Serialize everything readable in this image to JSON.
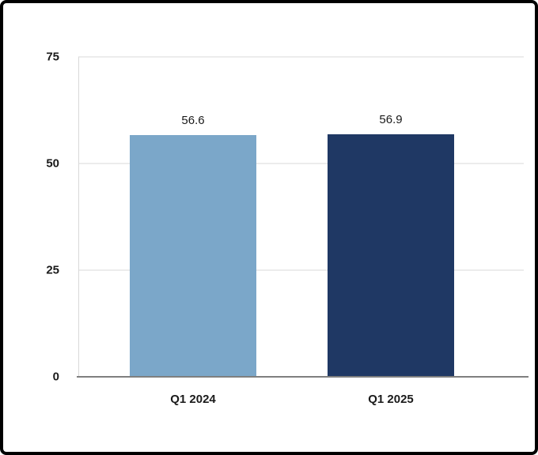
{
  "chart_data": {
    "type": "bar",
    "title": "",
    "xlabel": "",
    "ylabel": "",
    "categories": [
      "Q1 2024",
      "Q1 2025"
    ],
    "values": [
      56.6,
      56.9
    ],
    "value_labels": [
      "56.6",
      "56.9"
    ],
    "bar_colors": [
      "#7BA7C9",
      "#1F3864"
    ],
    "ylim": [
      0,
      75
    ],
    "yticks": [
      0,
      25,
      50,
      75
    ],
    "ytick_labels": [
      "0",
      "25",
      "50",
      "75"
    ],
    "grid": true,
    "legend": false,
    "background_color": "#ffffff",
    "gridline_color": "#d9d9d9",
    "axis_line_color": "#7f7f7f",
    "frame_border_color": "#000000"
  }
}
